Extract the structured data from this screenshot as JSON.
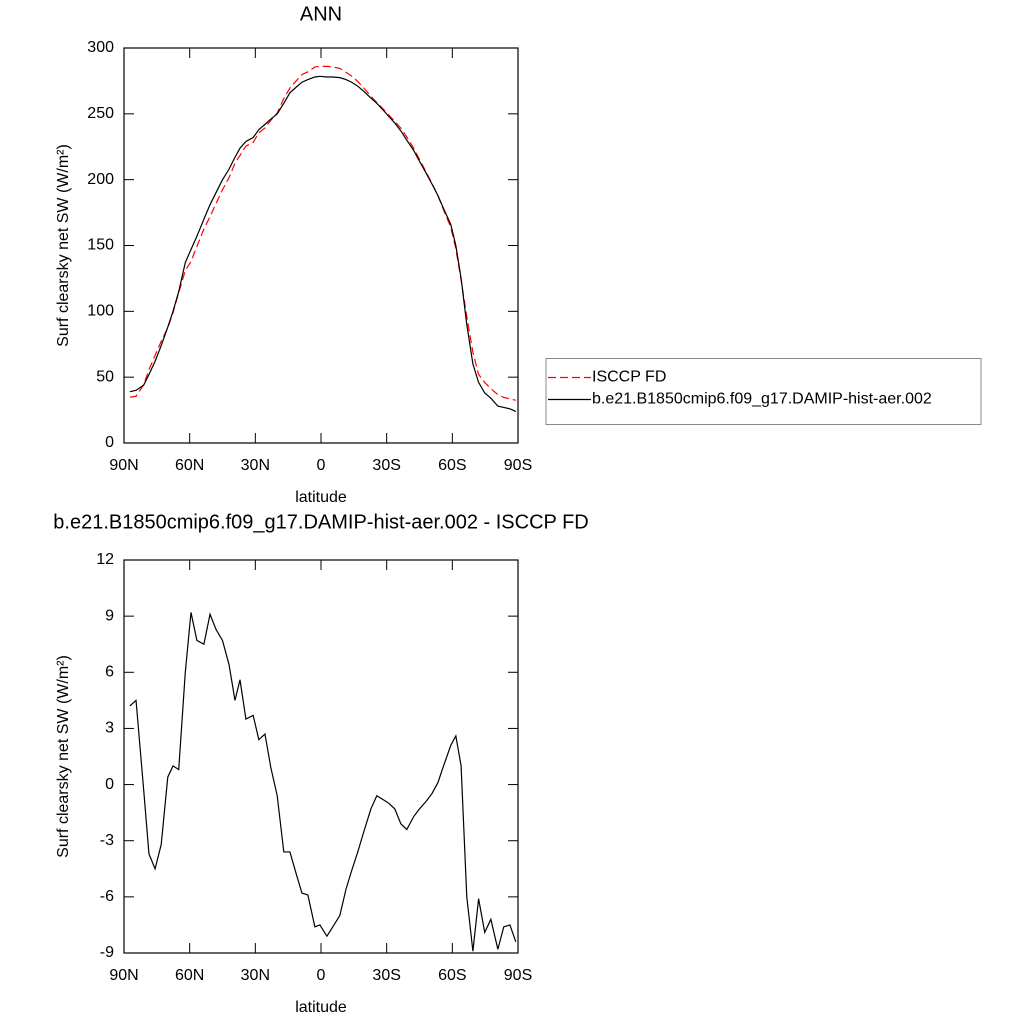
{
  "chart_data": [
    {
      "type": "line",
      "title": "ANN",
      "xlabel": "latitude",
      "ylabel": "Surf clearsky net SW (W/m²)",
      "x": [
        87.3,
        84.5,
        81,
        78.6,
        75.8,
        73,
        70,
        67.6,
        65,
        62,
        59.4,
        56.7,
        53.5,
        50.7,
        48,
        45,
        42,
        39.3,
        37,
        34.3,
        31,
        28.4,
        25.6,
        22.9,
        20,
        17,
        14.2,
        11.5,
        8.7,
        6,
        2.8,
        0.5,
        -2.7,
        -5.4,
        -8.6,
        -11.4,
        -14,
        -16.8,
        -19.6,
        -22.8,
        -25.5,
        -28.3,
        -31,
        -33.7,
        -36.5,
        -39.2,
        -42.4,
        -45,
        -48,
        -50.6,
        -53.4,
        -56,
        -59.3,
        -61.6,
        -64,
        -66.6,
        -69.4,
        -72,
        -74.8,
        -77.6,
        -80.8,
        -83.5,
        -86.3,
        -89
      ],
      "series": [
        {
          "name": "ISCCP FD",
          "color": "#ff0000",
          "dashed": true,
          "values": [
            34.8,
            35.5,
            44.3,
            55.7,
            66.5,
            77.2,
            87.6,
            99,
            114.2,
            131,
            137.8,
            149.3,
            162.5,
            171.9,
            181.7,
            192.3,
            201.6,
            212.5,
            218.4,
            225.5,
            228.3,
            235.6,
            239.3,
            245.1,
            250.6,
            261.6,
            269.6,
            274.7,
            279.8,
            281.9,
            285.6,
            286,
            286.1,
            285.6,
            284.5,
            281.6,
            278.6,
            274.6,
            269.5,
            263.3,
            258.6,
            253.8,
            249,
            244.3,
            239.1,
            232.4,
            223.7,
            215.3,
            205.9,
            197.5,
            187.9,
            177,
            163.9,
            147.4,
            124,
            96,
            68.9,
            52.1,
            45.9,
            41.2,
            36.8,
            34.6,
            33.5,
            32.4
          ]
        },
        {
          "name": "b.e21.B1850cmip6.f09_g17.DAMIP-hist-aer.002",
          "color": "#000000",
          "dashed": false,
          "values": [
            39,
            40,
            44,
            52,
            62,
            74,
            88,
            100,
            115,
            137,
            147,
            157,
            170,
            181,
            190,
            200,
            208,
            217,
            224,
            229,
            232,
            238,
            242,
            246,
            250,
            258,
            266,
            270,
            274,
            276,
            278,
            278.5,
            278,
            278,
            277.5,
            276,
            274,
            271,
            267,
            262,
            258,
            253,
            248,
            243,
            237,
            230,
            222,
            214,
            205,
            197,
            188,
            178,
            166,
            150,
            125,
            90,
            60,
            46,
            38,
            34,
            28,
            27,
            26,
            24
          ]
        }
      ],
      "xlim": [
        90,
        -90
      ],
      "xticks": [
        {
          "value": 90,
          "label": "90N"
        },
        {
          "value": 60,
          "label": "60N"
        },
        {
          "value": 30,
          "label": "30N"
        },
        0,
        {
          "value": -30,
          "label": "30S"
        },
        {
          "value": -60,
          "label": "60S"
        },
        {
          "value": -90,
          "label": "90S"
        }
      ],
      "ylim": [
        0,
        300
      ],
      "yticks": [
        0,
        50,
        100,
        150,
        200,
        250,
        300
      ],
      "legend": "right"
    },
    {
      "type": "line",
      "title": "b.e21.B1850cmip6.f09_g17.DAMIP-hist-aer.002 - ISCCP FD",
      "xlabel": "latitude",
      "ylabel": "Surf clearsky net SW (W/m²)",
      "x": [
        87.3,
        84.5,
        81,
        78.6,
        75.8,
        73,
        70,
        67.6,
        65,
        62,
        59.4,
        56.7,
        53.5,
        50.7,
        48,
        45,
        42,
        39.3,
        37,
        34.3,
        31,
        28.4,
        25.6,
        22.9,
        20,
        17,
        14.2,
        11.5,
        8.7,
        6,
        2.8,
        0.5,
        -2.7,
        -5.4,
        -8.6,
        -11.4,
        -14,
        -16.8,
        -19.6,
        -22.8,
        -25.5,
        -28.3,
        -31,
        -33.7,
        -36.5,
        -39.2,
        -42.4,
        -45,
        -48,
        -50.6,
        -53.4,
        -56,
        -59.3,
        -61.6,
        -64,
        -66.6,
        -69.4,
        -72,
        -74.8,
        -77.6,
        -80.8,
        -83.5,
        -86.3,
        -89
      ],
      "series": [
        {
          "color": "#000000",
          "dashed": false,
          "values": [
            4.2,
            4.5,
            -0.3,
            -3.7,
            -4.5,
            -3.2,
            0.4,
            1.0,
            0.8,
            6,
            9.2,
            7.7,
            7.5,
            9.1,
            8.3,
            7.7,
            6.4,
            4.5,
            5.6,
            3.5,
            3.7,
            2.4,
            2.7,
            0.9,
            -0.6,
            -3.6,
            -3.6,
            -4.7,
            -5.8,
            -5.9,
            -7.6,
            -7.5,
            -8.1,
            -7.6,
            -7.0,
            -5.6,
            -4.6,
            -3.6,
            -2.5,
            -1.3,
            -0.6,
            -0.8,
            -1.0,
            -1.3,
            -2.1,
            -2.4,
            -1.7,
            -1.3,
            -0.9,
            -0.5,
            0.1,
            1.0,
            2.1,
            2.6,
            1.0,
            -6.0,
            -8.9,
            -6.1,
            -7.9,
            -7.2,
            -8.8,
            -7.6,
            -7.5,
            -8.4
          ]
        }
      ],
      "xlim": [
        90,
        -90
      ],
      "xticks": [
        {
          "value": 90,
          "label": "90N"
        },
        {
          "value": 60,
          "label": "60N"
        },
        {
          "value": 30,
          "label": "30N"
        },
        0,
        {
          "value": -30,
          "label": "30S"
        },
        {
          "value": -60,
          "label": "60S"
        },
        {
          "value": -90,
          "label": "90S"
        }
      ],
      "ylim": [
        -9,
        12
      ],
      "yticks": [
        -9,
        -6,
        -3,
        0,
        3,
        6,
        9,
        12
      ]
    }
  ]
}
